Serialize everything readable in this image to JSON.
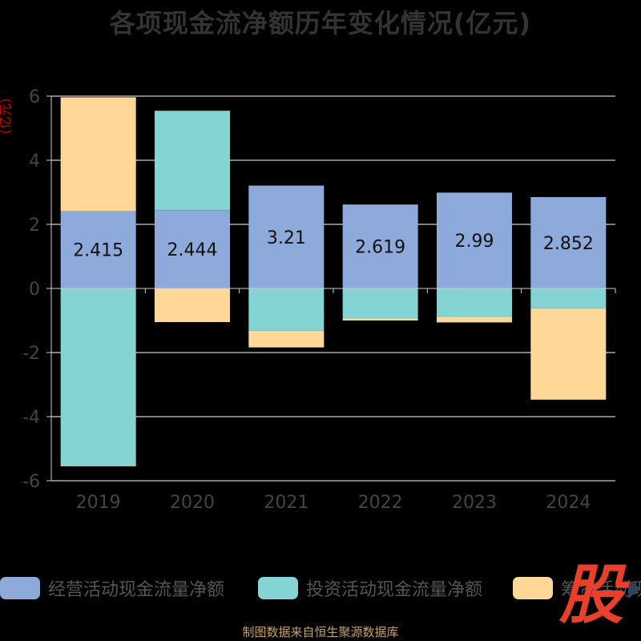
{
  "title": "各项现金流净额历年变化情况(亿元)",
  "source": "制图数据来自恒生聚源数据库",
  "watermark": "股",
  "colors": {
    "operating": "#8eaadb",
    "investing": "#84d4d4",
    "financing": "#ffd898",
    "axis": "#cccccc",
    "grid": "#ffffff",
    "unit": "#cc0000"
  },
  "chart_data": {
    "type": "bar",
    "stacked": true,
    "title": "各项现金流净额历年变化情况(亿元)",
    "ylabel": "(亿元)",
    "ylim": [
      -6,
      6
    ],
    "yticks": [
      6,
      4,
      2,
      0,
      -2,
      -4,
      -6
    ],
    "grid": true,
    "legend_position": "bottom",
    "categories": [
      "2019",
      "2020",
      "2021",
      "2022",
      "2023",
      "2024"
    ],
    "series": [
      {
        "name": "经营活动现金流量净额",
        "color": "#8eaadb",
        "values": [
          2.415,
          2.444,
          3.21,
          2.619,
          2.99,
          2.852
        ],
        "labels": [
          "2.415",
          "2.444",
          "3.21",
          "2.619",
          "2.99",
          "2.852"
        ]
      },
      {
        "name": "投资活动现金流量净额",
        "color": "#84d4d4",
        "values": [
          -5.55,
          3.1,
          -1.32,
          -0.93,
          -0.88,
          -0.62
        ]
      },
      {
        "name": "筹资活动现金流量净额",
        "color": "#ffd898",
        "values": [
          3.55,
          -1.05,
          -0.52,
          -0.07,
          -0.18,
          -2.85
        ]
      }
    ]
  }
}
